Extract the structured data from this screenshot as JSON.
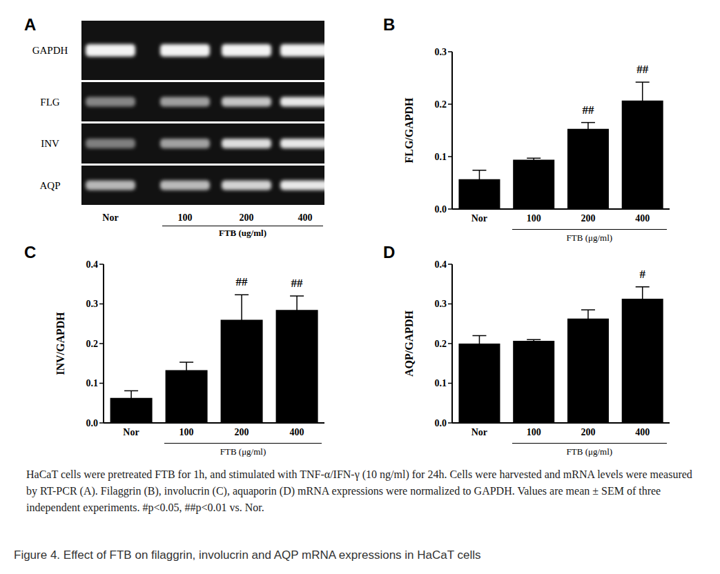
{
  "figure_title": "Figure 4. Effect of FTB on filaggrin, involucrin and AQP mRNA expressions in HaCaT cells",
  "caption": "HaCaT cells were pretreated FTB for 1h, and stimulated with TNF-α/IFN-γ (10 ng/ml) for 24h. Cells were harvested and mRNA levels were measured by RT-PCR (A). Filaggrin (B), involucrin (C), aquaporin (D) mRNA expressions were normalized to GAPDH. Values are mean ± SEM of three independent experiments. #p<0.05, ##p<0.01 vs. Nor.",
  "gel": {
    "panel": "A",
    "rows": [
      "GAPDH",
      "FLG",
      "INV",
      "AQP"
    ],
    "lanes": [
      "Nor",
      "100",
      "200",
      "400"
    ],
    "x_label": "FTB (ug/ml)"
  },
  "chart_data": [
    {
      "panel": "B",
      "type": "bar",
      "categories": [
        "Nor",
        "100",
        "200",
        "400"
      ],
      "values": [
        0.057,
        0.094,
        0.153,
        0.207
      ],
      "errors": [
        0.017,
        0.003,
        0.012,
        0.035
      ],
      "annotations": [
        null,
        null,
        "##",
        "##"
      ],
      "y_label": "FLG/GAPDH",
      "x_label": "FTB (μg/ml)",
      "color": "#000000",
      "ylim": [
        0,
        0.3
      ],
      "yticks": [
        {
          "value": 0,
          "label": "0.0"
        },
        0.1,
        0.2,
        0.3
      ]
    },
    {
      "panel": "C",
      "type": "bar",
      "categories": [
        "Nor",
        "100",
        "200",
        "400"
      ],
      "values": [
        0.063,
        0.133,
        0.26,
        0.285
      ],
      "errors": [
        0.018,
        0.02,
        0.063,
        0.035
      ],
      "annotations": [
        null,
        null,
        "##",
        "##"
      ],
      "y_label": "INV/GAPDH",
      "x_label": "FTB (μg/ml)",
      "color": "#000000",
      "ylim": [
        0,
        0.4
      ],
      "yticks": [
        {
          "value": 0,
          "label": "0.0"
        },
        0.1,
        0.2,
        0.3,
        0.4
      ]
    },
    {
      "panel": "D",
      "type": "bar",
      "categories": [
        "Nor",
        "100",
        "200",
        "400"
      ],
      "values": [
        0.2,
        0.207,
        0.263,
        0.313
      ],
      "errors": [
        0.02,
        0.003,
        0.022,
        0.03
      ],
      "annotations": [
        null,
        null,
        null,
        "#"
      ],
      "y_label": "AQP/GAPDH",
      "x_label": "FTB (μg/ml)",
      "color": "#000000",
      "ylim": [
        0,
        0.4
      ],
      "yticks": [
        {
          "value": 0,
          "label": "0.0"
        },
        0.1,
        0.2,
        0.3,
        0.4
      ]
    }
  ]
}
